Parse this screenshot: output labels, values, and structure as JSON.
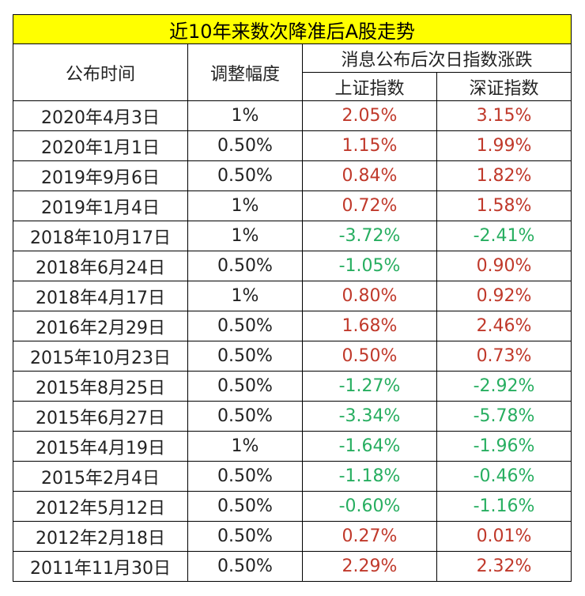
{
  "title": "近10年来数次降准后A股走势",
  "colors": {
    "title_bg": "#ffff00",
    "rise": "#c0392b",
    "fall": "#27ae60"
  },
  "headers": {
    "date": "公布时间",
    "adjust": "调整幅度",
    "next_day": "消息公布后次日指数涨跌",
    "sh": "上证指数",
    "sz": "深证指数"
  },
  "rows": [
    {
      "date": "2020年4月3日",
      "adjust": "1%",
      "sh": "2.05%",
      "sz": "3.15%",
      "sh_dir": "rise",
      "sz_dir": "rise"
    },
    {
      "date": "2020年1月1日",
      "adjust": "0.50%",
      "sh": "1.15%",
      "sz": "1.99%",
      "sh_dir": "rise",
      "sz_dir": "rise"
    },
    {
      "date": "2019年9月6日",
      "adjust": "0.50%",
      "sh": "0.84%",
      "sz": "1.82%",
      "sh_dir": "rise",
      "sz_dir": "rise"
    },
    {
      "date": "2019年1月4日",
      "adjust": "1%",
      "sh": "0.72%",
      "sz": "1.58%",
      "sh_dir": "rise",
      "sz_dir": "rise"
    },
    {
      "date": "2018年10月17日",
      "adjust": "1%",
      "sh": "-3.72%",
      "sz": "-2.41%",
      "sh_dir": "fall",
      "sz_dir": "fall"
    },
    {
      "date": "2018年6月24日",
      "adjust": "0.50%",
      "sh": "-1.05%",
      "sz": "0.90%",
      "sh_dir": "fall",
      "sz_dir": "rise"
    },
    {
      "date": "2018年4月17日",
      "adjust": "1%",
      "sh": "0.80%",
      "sz": "0.92%",
      "sh_dir": "rise",
      "sz_dir": "rise"
    },
    {
      "date": "2016年2月29日",
      "adjust": "0.50%",
      "sh": "1.68%",
      "sz": "2.46%",
      "sh_dir": "rise",
      "sz_dir": "rise"
    },
    {
      "date": "2015年10月23日",
      "adjust": "0.50%",
      "sh": "0.50%",
      "sz": "0.73%",
      "sh_dir": "rise",
      "sz_dir": "rise"
    },
    {
      "date": "2015年8月25日",
      "adjust": "0.50%",
      "sh": "-1.27%",
      "sz": "-2.92%",
      "sh_dir": "fall",
      "sz_dir": "fall"
    },
    {
      "date": "2015年6月27日",
      "adjust": "0.50%",
      "sh": "-3.34%",
      "sz": "-5.78%",
      "sh_dir": "fall",
      "sz_dir": "fall"
    },
    {
      "date": "2015年4月19日",
      "adjust": "1%",
      "sh": "-1.64%",
      "sz": "-1.96%",
      "sh_dir": "fall",
      "sz_dir": "fall"
    },
    {
      "date": "2015年2月4日",
      "adjust": "0.50%",
      "sh": "-1.18%",
      "sz": "-0.46%",
      "sh_dir": "fall",
      "sz_dir": "fall"
    },
    {
      "date": "2012年5月12日",
      "adjust": "0.50%",
      "sh": "-0.60%",
      "sz": "-1.16%",
      "sh_dir": "fall",
      "sz_dir": "fall"
    },
    {
      "date": "2012年2月18日",
      "adjust": "0.50%",
      "sh": "0.27%",
      "sz": "0.01%",
      "sh_dir": "rise",
      "sz_dir": "rise"
    },
    {
      "date": "2011年11月30日",
      "adjust": "0.50%",
      "sh": "2.29%",
      "sz": "2.32%",
      "sh_dir": "rise",
      "sz_dir": "rise"
    }
  ]
}
